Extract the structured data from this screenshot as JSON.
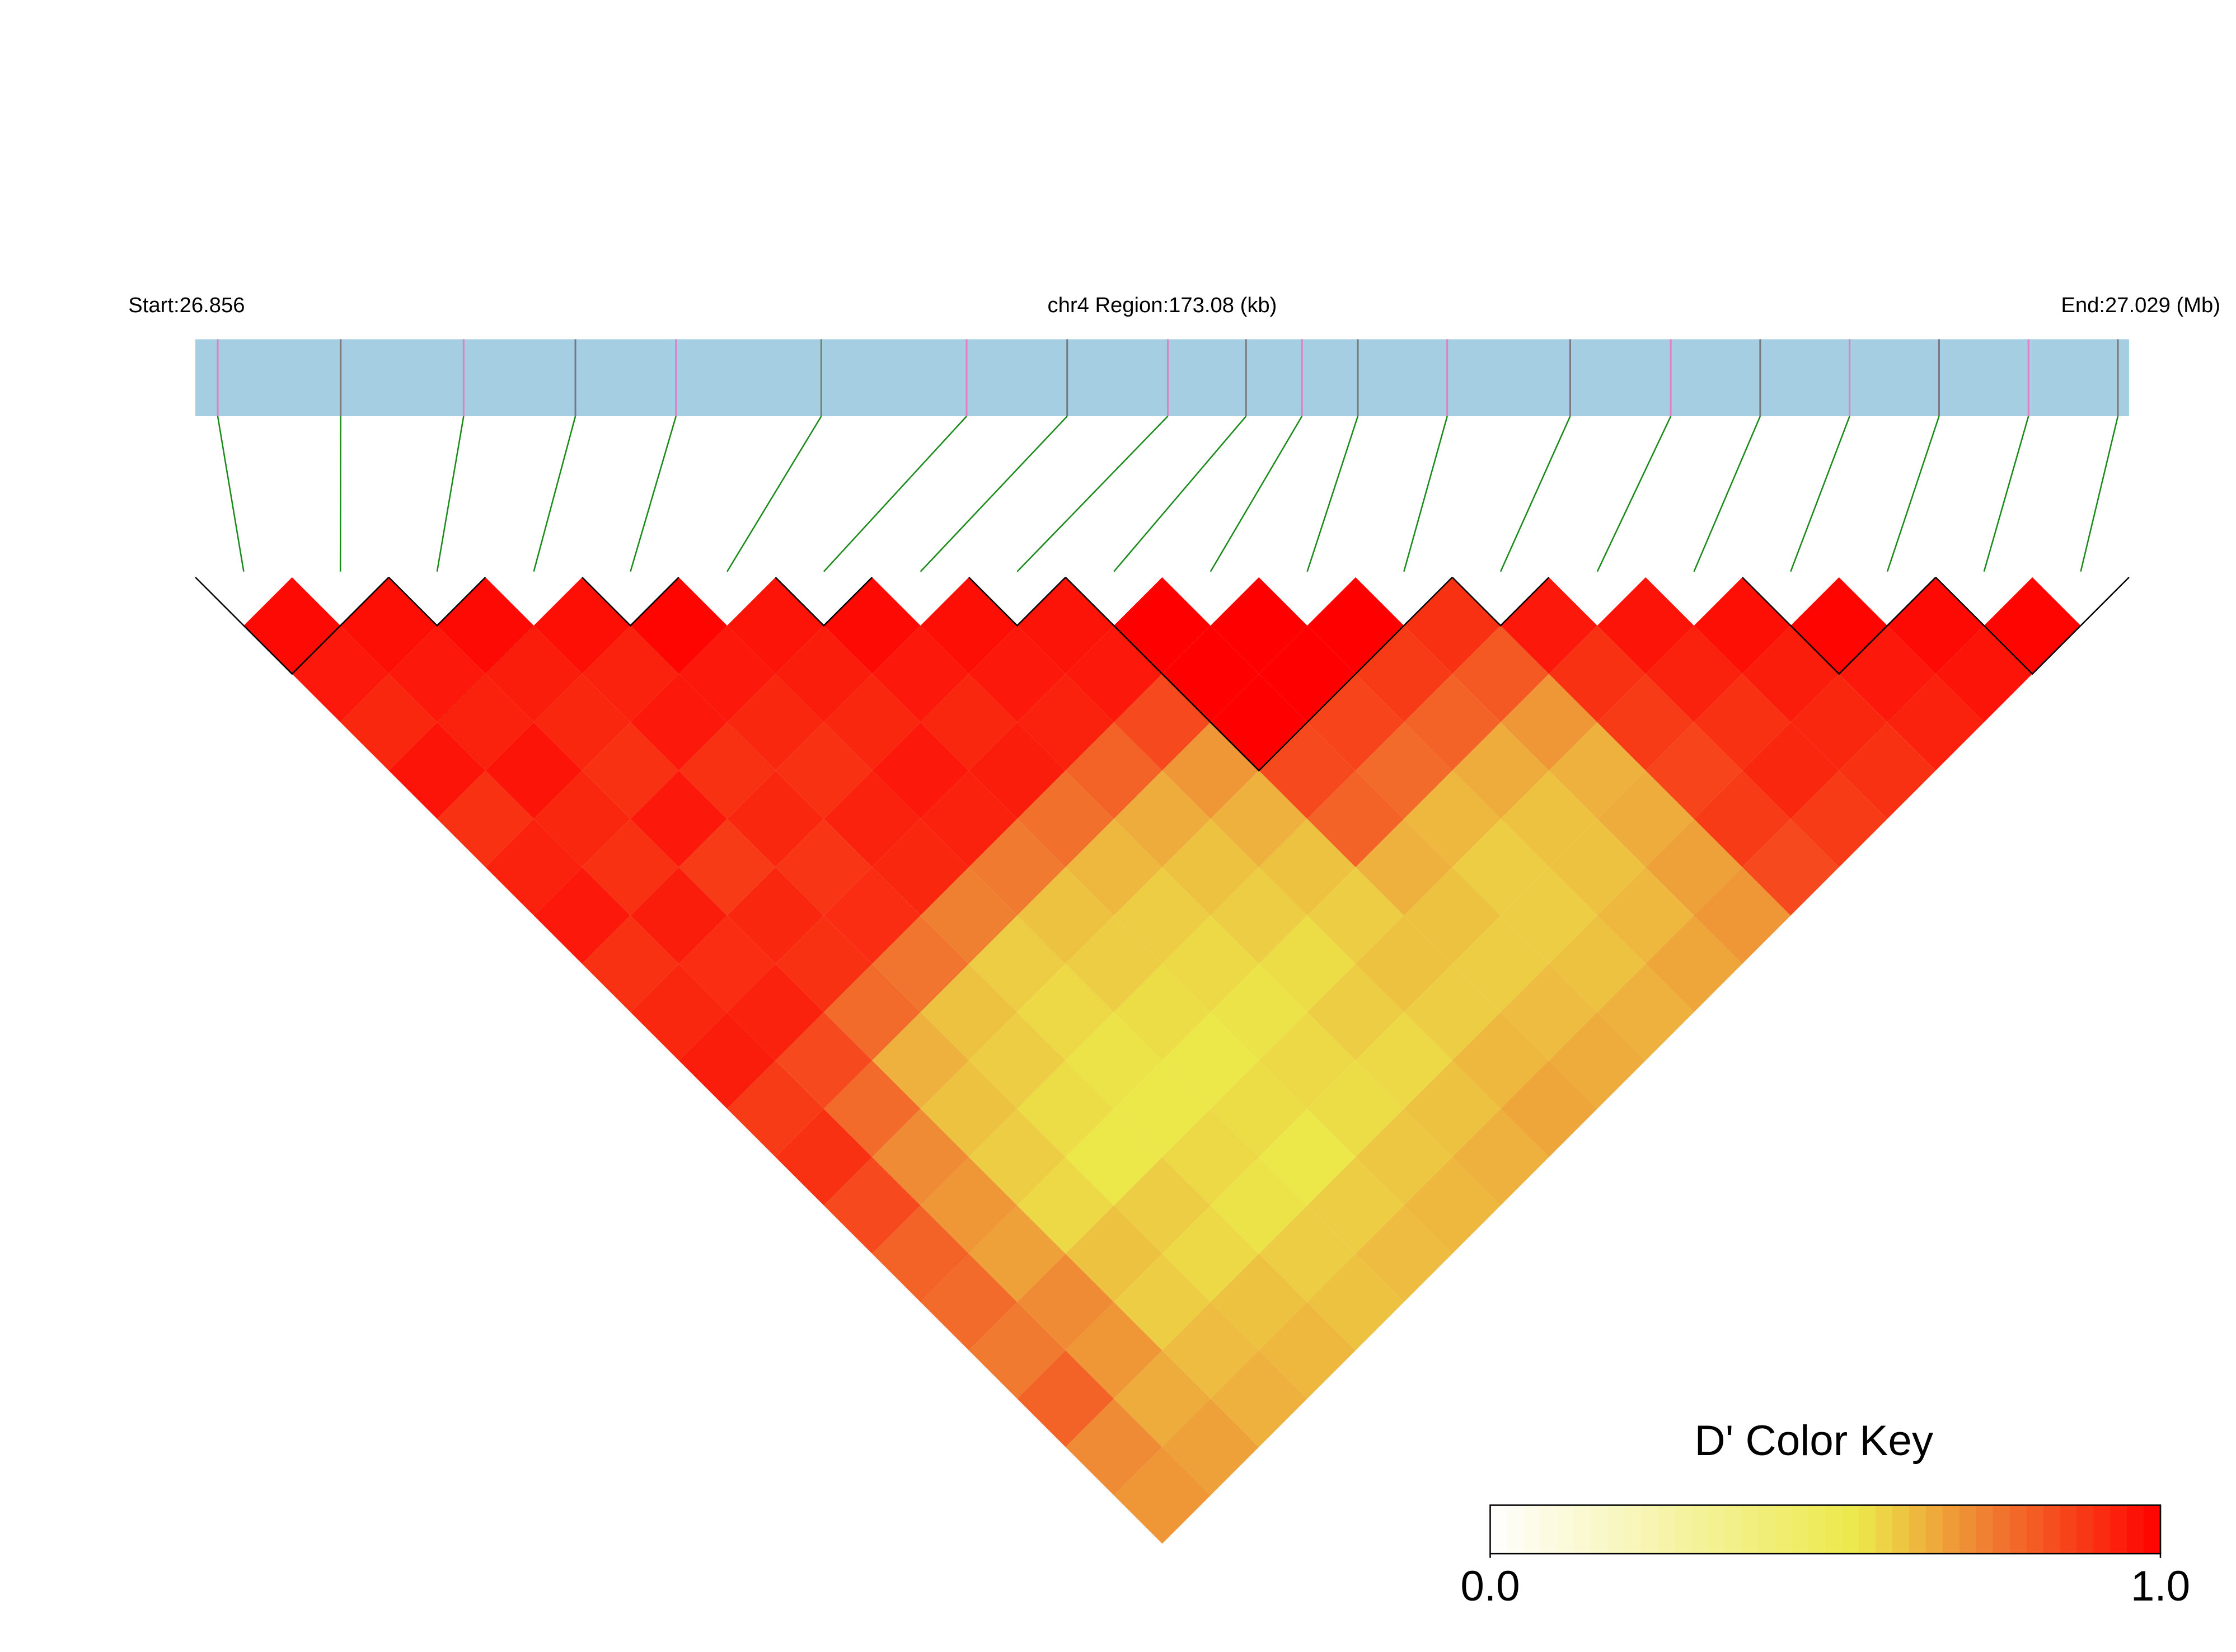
{
  "chart_data": {
    "type": "ld_heatmap",
    "start_label": "Start:26.856",
    "region_label": "chr4 Region:173.08 (kb)",
    "end_label": "End:27.029 (Mb)",
    "xlim": [
      26.856,
      27.029
    ],
    "snp_positions": [
      26.858,
      26.869,
      26.88,
      26.89,
      26.899,
      26.912,
      26.925,
      26.934,
      26.943,
      26.95,
      26.955,
      26.96,
      26.968,
      26.979,
      26.988,
      26.996,
      27.004,
      27.012,
      27.02,
      27.028
    ],
    "strip_color": "#a6cee3",
    "snp_line_colors": [
      "#e07fc4",
      "#7a7a7a"
    ],
    "connector_color": "#1a8a1a",
    "dprime": [
      [
        0.98,
        0.95,
        0.92,
        0.96,
        0.9,
        0.93,
        0.95,
        0.9,
        0.92,
        0.94,
        0.88,
        0.9,
        0.85,
        0.8,
        0.78,
        0.75,
        0.8,
        0.72,
        0.7
      ],
      [
        0.97,
        0.95,
        0.93,
        0.96,
        0.92,
        0.9,
        0.94,
        0.91,
        0.93,
        0.85,
        0.78,
        0.72,
        0.7,
        0.68,
        0.72,
        0.7,
        0.66,
        0.68
      ],
      [
        0.98,
        0.94,
        0.92,
        0.9,
        0.95,
        0.88,
        0.92,
        0.9,
        0.78,
        0.65,
        0.62,
        0.6,
        0.58,
        0.62,
        0.6,
        0.63,
        0.65
      ],
      [
        0.97,
        0.93,
        0.95,
        0.9,
        0.92,
        0.89,
        0.91,
        0.76,
        0.62,
        0.6,
        0.57,
        0.55,
        0.6,
        0.58,
        0.62,
        0.64
      ],
      [
        0.99,
        0.95,
        0.92,
        0.9,
        0.93,
        0.92,
        0.74,
        0.6,
        0.58,
        0.56,
        0.55,
        0.58,
        0.56,
        0.6,
        0.62
      ],
      [
        0.96,
        0.94,
        0.92,
        0.95,
        0.93,
        0.75,
        0.62,
        0.6,
        0.57,
        0.55,
        0.57,
        0.55,
        0.6,
        0.63
      ],
      [
        0.98,
        0.95,
        0.92,
        0.94,
        0.77,
        0.64,
        0.6,
        0.58,
        0.56,
        0.58,
        0.57,
        0.61,
        0.64
      ],
      [
        0.97,
        0.95,
        0.93,
        0.8,
        0.66,
        0.62,
        0.6,
        0.57,
        0.6,
        0.58,
        0.62,
        0.65
      ],
      [
        0.96,
        0.95,
        0.85,
        0.7,
        0.65,
        0.62,
        0.6,
        0.62,
        0.6,
        0.64,
        0.67
      ],
      [
        1,
        1,
        1,
        0.85,
        0.8,
        0.65,
        0.62,
        0.6,
        0.63,
        0.66
      ],
      [
        1,
        1,
        0.86,
        0.78,
        0.64,
        0.6,
        0.6,
        0.62,
        0.65
      ],
      [
        1,
        0.88,
        0.8,
        0.66,
        0.62,
        0.62,
        0.64,
        0.67
      ],
      [
        0.9,
        0.82,
        0.7,
        0.65,
        0.66,
        0.68,
        0.7
      ],
      [
        0.95,
        0.9,
        0.88,
        0.86,
        0.88,
        0.85
      ],
      [
        0.96,
        0.93,
        0.9,
        0.92,
        0.88
      ],
      [
        0.97,
        0.94,
        0.92,
        0.9
      ],
      [
        0.99,
        0.95,
        0.93
      ],
      [
        0.98,
        0.96
      ],
      [
        0.99
      ]
    ],
    "blocks": [
      [
        0,
        1
      ],
      [
        2,
        2
      ],
      [
        4,
        4
      ],
      [
        6,
        6
      ],
      [
        8,
        8
      ],
      [
        9,
        12
      ],
      [
        13,
        13
      ],
      [
        16,
        17
      ],
      [
        18,
        19
      ]
    ],
    "block_color": "#000000",
    "colormap": [
      {
        "value": 0,
        "color": "#ffffff"
      },
      {
        "value": 0.55,
        "color": "#ece84a"
      },
      {
        "value": 0.75,
        "color": "#f07a30"
      },
      {
        "value": 1,
        "color": "#ff0000"
      }
    ],
    "key_title": "D' Color Key",
    "key_ticks": [
      {
        "value": 0,
        "label": "0.0"
      },
      {
        "value": 1,
        "label": "1.0"
      }
    ]
  }
}
